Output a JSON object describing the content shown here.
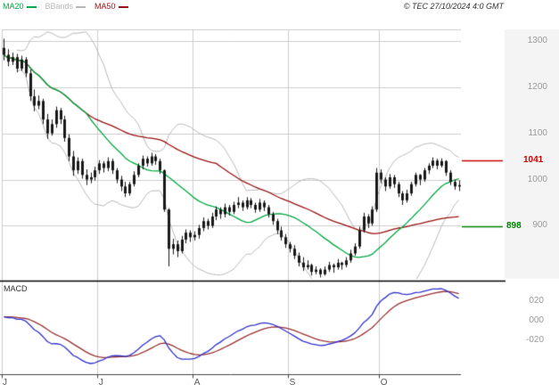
{
  "titlebar": {
    "copyright": "© TEC 27/10/2024 4:0 GMT"
  },
  "legend": {
    "items": [
      {
        "label": "MA20",
        "color": "#00a843"
      },
      {
        "label": "BBands",
        "color": "#b8b8b8"
      },
      {
        "label": "MA50",
        "color": "#991111"
      }
    ]
  },
  "price_axis": {
    "ticks": [
      {
        "label": "1300",
        "value": 1300
      },
      {
        "label": "1200",
        "value": 1200
      },
      {
        "label": "1100",
        "value": 1100
      },
      {
        "label": "1000",
        "value": 1000
      },
      {
        "label": "900",
        "value": 900
      }
    ]
  },
  "levels": [
    {
      "label": "1041",
      "value": 1041,
      "color": "#cc0000"
    },
    {
      "label": "898",
      "value": 898,
      "color": "#008000"
    }
  ],
  "macd_panel": {
    "title": "MACD",
    "ticks": [
      {
        "label": "020",
        "value": 20
      },
      {
        "label": "000",
        "value": 0
      },
      {
        "label": "-020",
        "value": -20
      }
    ]
  },
  "x_axis": {
    "months": [
      {
        "label": "J",
        "count": 22
      },
      {
        "label": "J",
        "count": 22
      },
      {
        "label": "A",
        "count": 22
      },
      {
        "label": "S",
        "count": 21
      },
      {
        "label": "O",
        "count": 19
      }
    ]
  },
  "colors": {
    "background": "#ffffff",
    "grid": "#cccccc",
    "candle": "#1a1a1a",
    "bbands": "#b8b8b8",
    "ma20": "#00a843",
    "ma50": "#991111",
    "gutter": "#f4f4f4",
    "axis_text": "#999999",
    "separator": "#000000"
  },
  "chart_data": [
    {
      "type": "candlestick",
      "symbol": "TEC",
      "as_of": "27/10/2024 4:0 GMT",
      "ylim": [
        785,
        1325
      ],
      "yticks": [
        1300,
        1200,
        1100,
        1000,
        900
      ],
      "levels": [
        1041,
        898
      ],
      "overlays": [
        {
          "name": "MA20",
          "period": 20,
          "color": "#00a843"
        },
        {
          "name": "MA50",
          "period": 50,
          "color": "#991111"
        },
        {
          "name": "BBands",
          "period": 20,
          "stdev": 2,
          "color": "#b8b8b8"
        }
      ],
      "months": [
        "J",
        "J",
        "A",
        "S",
        "O"
      ],
      "ohlc": [
        [
          1285,
          1305,
          1258,
          1270
        ],
        [
          1270,
          1282,
          1245,
          1255
        ],
        [
          1255,
          1275,
          1248,
          1265
        ],
        [
          1265,
          1272,
          1232,
          1240
        ],
        [
          1240,
          1268,
          1235,
          1260
        ],
        [
          1260,
          1265,
          1222,
          1230
        ],
        [
          1230,
          1238,
          1170,
          1180
        ],
        [
          1180,
          1195,
          1148,
          1160
        ],
        [
          1160,
          1182,
          1152,
          1170
        ],
        [
          1170,
          1175,
          1120,
          1130
        ],
        [
          1130,
          1142,
          1088,
          1100
        ],
        [
          1100,
          1130,
          1095,
          1120
        ],
        [
          1120,
          1158,
          1112,
          1150
        ],
        [
          1150,
          1155,
          1120,
          1130
        ],
        [
          1130,
          1138,
          1082,
          1090
        ],
        [
          1090,
          1098,
          1040,
          1050
        ],
        [
          1050,
          1062,
          1008,
          1020
        ],
        [
          1020,
          1048,
          1012,
          1040
        ],
        [
          1040,
          1045,
          1002,
          1010
        ],
        [
          1010,
          1022,
          988,
          1000
        ],
        [
          1000,
          1015,
          992,
          1005
        ],
        [
          1005,
          1028,
          998,
          1020
        ],
        [
          1020,
          1042,
          1012,
          1035
        ],
        [
          1035,
          1040,
          1015,
          1025
        ],
        [
          1025,
          1048,
          1018,
          1040
        ],
        [
          1040,
          1045,
          1012,
          1020
        ],
        [
          1020,
          1025,
          992,
          1000
        ],
        [
          1000,
          1008,
          975,
          985
        ],
        [
          985,
          995,
          962,
          970
        ],
        [
          970,
          995,
          965,
          990
        ],
        [
          990,
          1018,
          985,
          1010
        ],
        [
          1010,
          1035,
          1005,
          1030
        ],
        [
          1030,
          1052,
          1022,
          1045
        ],
        [
          1045,
          1050,
          1028,
          1035
        ],
        [
          1035,
          1058,
          1030,
          1050
        ],
        [
          1050,
          1055,
          1032,
          1040
        ],
        [
          1040,
          1045,
          1012,
          1020
        ],
        [
          1020,
          1022,
          930,
          935
        ],
        [
          935,
          938,
          812,
          850
        ],
        [
          850,
          872,
          838,
          860
        ],
        [
          860,
          868,
          832,
          845
        ],
        [
          845,
          878,
          840,
          870
        ],
        [
          870,
          892,
          862,
          885
        ],
        [
          885,
          890,
          865,
          875
        ],
        [
          875,
          888,
          868,
          880
        ],
        [
          880,
          902,
          872,
          895
        ],
        [
          895,
          918,
          888,
          910
        ],
        [
          910,
          915,
          892,
          900
        ],
        [
          900,
          928,
          895,
          920
        ],
        [
          920,
          942,
          912,
          935
        ],
        [
          935,
          940,
          915,
          925
        ],
        [
          925,
          948,
          918,
          940
        ],
        [
          940,
          945,
          922,
          930
        ],
        [
          930,
          952,
          925,
          945
        ],
        [
          945,
          962,
          938,
          950
        ],
        [
          950,
          955,
          932,
          940
        ],
        [
          940,
          962,
          935,
          955
        ],
        [
          955,
          960,
          938,
          945
        ],
        [
          945,
          950,
          928,
          935
        ],
        [
          935,
          958,
          930,
          950
        ],
        [
          950,
          955,
          932,
          940
        ],
        [
          940,
          945,
          918,
          925
        ],
        [
          925,
          930,
          902,
          910
        ],
        [
          910,
          915,
          882,
          890
        ],
        [
          890,
          898,
          868,
          875
        ],
        [
          875,
          882,
          852,
          860
        ],
        [
          860,
          865,
          842,
          850
        ],
        [
          850,
          858,
          828,
          835
        ],
        [
          835,
          842,
          812,
          820
        ],
        [
          820,
          832,
          802,
          810
        ],
        [
          810,
          825,
          805,
          815
        ],
        [
          815,
          818,
          792,
          800
        ],
        [
          800,
          812,
          795,
          805
        ],
        [
          805,
          808,
          788,
          795
        ],
        [
          795,
          812,
          792,
          805
        ],
        [
          805,
          822,
          800,
          815
        ],
        [
          815,
          818,
          798,
          810
        ],
        [
          810,
          828,
          805,
          820
        ],
        [
          820,
          822,
          805,
          815
        ],
        [
          815,
          832,
          810,
          825
        ],
        [
          825,
          848,
          820,
          840
        ],
        [
          840,
          862,
          835,
          855
        ],
        [
          855,
          898,
          850,
          890
        ],
        [
          890,
          928,
          885,
          920
        ],
        [
          920,
          925,
          895,
          905
        ],
        [
          905,
          942,
          900,
          935
        ],
        [
          935,
          1025,
          930,
          1015
        ],
        [
          1015,
          1022,
          992,
          1000
        ],
        [
          1000,
          1005,
          975,
          985
        ],
        [
          985,
          1012,
          980,
          1005
        ],
        [
          1005,
          1010,
          982,
          990
        ],
        [
          990,
          995,
          962,
          970
        ],
        [
          970,
          975,
          945,
          955
        ],
        [
          955,
          978,
          950,
          970
        ],
        [
          970,
          995,
          965,
          990
        ],
        [
          990,
          1015,
          985,
          1010
        ],
        [
          1010,
          1012,
          988,
          1000
        ],
        [
          1000,
          1025,
          995,
          1020
        ],
        [
          1020,
          1035,
          1012,
          1030
        ],
        [
          1030,
          1048,
          1025,
          1041
        ],
        [
          1041,
          1045,
          1022,
          1030
        ],
        [
          1030,
          1046,
          1026,
          1040
        ],
        [
          1040,
          1042,
          1008,
          1015
        ],
        [
          1015,
          1020,
          988,
          995
        ],
        [
          995,
          1000,
          978,
          985
        ],
        [
          985,
          998,
          975,
          988
        ]
      ]
    },
    {
      "type": "line",
      "title": "MACD",
      "params": {
        "fast": 12,
        "slow": 26,
        "signal": 9,
        "derived_from": "close of candlestick panel"
      },
      "series": [
        {
          "name": "MACD",
          "color": "#3333cc"
        },
        {
          "name": "Signal",
          "color": "#993333"
        }
      ],
      "yticks": [
        20,
        0,
        -20
      ]
    }
  ]
}
